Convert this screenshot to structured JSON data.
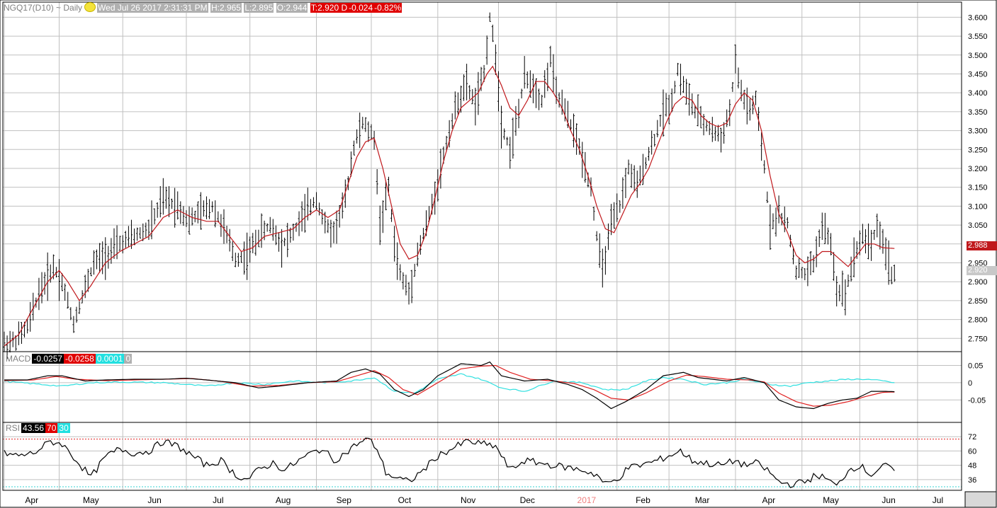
{
  "header": {
    "symbol": "NGQ17(D10) ~ Daily",
    "datetime": "Wed Jul 26 2017 2:31:31 PM",
    "high": "H:2.965",
    "low": "L:2.895",
    "open": "O:2.944",
    "last": "T:2.920 D",
    "change": "-0.024",
    "change_pct": "-0.82%"
  },
  "price_tags": {
    "ma": "2.988",
    "last": "2.920"
  },
  "macd_legend": {
    "label": "MACD",
    "macd": "-0.0257",
    "signal": "-0.0258",
    "hist": "0.0001",
    "zero": "0"
  },
  "rsi_legend": {
    "label": "RSI",
    "value": "43.56",
    "upper": "70",
    "lower": "30"
  },
  "colors": {
    "bars": "#000000",
    "ma": "#c0181c",
    "macd": "#000000",
    "signal": "#e02020",
    "hist": "#30e0e0",
    "rsi": "#000000",
    "grid": "#c0c0c0"
  },
  "chart_data": {
    "type": "line",
    "price_axis": {
      "ticks": [
        "3.600",
        "3.550",
        "3.500",
        "3.450",
        "3.400",
        "3.350",
        "3.300",
        "3.250",
        "3.200",
        "3.150",
        "3.100",
        "3.050",
        "3.000",
        "2.950",
        "2.900",
        "2.850",
        "2.800",
        "2.750"
      ],
      "ylim": [
        2.715,
        3.64
      ]
    },
    "macd_axis": {
      "ticks": [
        "0.05",
        "0",
        "-0.05"
      ],
      "ylim": [
        -0.115,
        0.09
      ]
    },
    "rsi_axis": {
      "ticks": [
        "72",
        "60",
        "48",
        "36"
      ],
      "ylim": [
        27,
        84
      ]
    },
    "month_labels": [
      "Apr",
      "May",
      "Jun",
      "Jul",
      "Aug",
      "Sep",
      "Oct",
      "Nov",
      "Dec",
      "2017",
      "Feb",
      "Mar",
      "Apr",
      "May",
      "Jun",
      "Jul"
    ],
    "anchor_bars": [
      0,
      19,
      41,
      63,
      85,
      108,
      127,
      150,
      171,
      191,
      212,
      230,
      253,
      276,
      296,
      316,
      330
    ],
    "price_ohlc_knots": [
      [
        0,
        2.735
      ],
      [
        4,
        2.745
      ],
      [
        8,
        2.78
      ],
      [
        12,
        2.87
      ],
      [
        17,
        2.94
      ],
      [
        20,
        2.9
      ],
      [
        24,
        2.79
      ],
      [
        27,
        2.86
      ],
      [
        31,
        2.95
      ],
      [
        35,
        2.97
      ],
      [
        40,
        3.0
      ],
      [
        45,
        3.02
      ],
      [
        50,
        3.04
      ],
      [
        55,
        3.12
      ],
      [
        60,
        3.1
      ],
      [
        64,
        3.06
      ],
      [
        67,
        3.08
      ],
      [
        72,
        3.1
      ],
      [
        76,
        3.04
      ],
      [
        80,
        2.96
      ],
      [
        84,
        2.97
      ],
      [
        88,
        3.02
      ],
      [
        92,
        3.05
      ],
      [
        96,
        3.0
      ],
      [
        99,
        3.02
      ],
      [
        104,
        3.08
      ],
      [
        108,
        3.12
      ],
      [
        111,
        3.05
      ],
      [
        114,
        3.03
      ],
      [
        118,
        3.12
      ],
      [
        121,
        3.26
      ],
      [
        124,
        3.32
      ],
      [
        128,
        3.28
      ],
      [
        130,
        3.05
      ],
      [
        133,
        3.15
      ],
      [
        135,
        3.0
      ],
      [
        137,
        2.92
      ],
      [
        140,
        2.87
      ],
      [
        143,
        2.97
      ],
      [
        146,
        3.05
      ],
      [
        148,
        3.1
      ],
      [
        151,
        3.2
      ],
      [
        154,
        3.3
      ],
      [
        157,
        3.38
      ],
      [
        160,
        3.42
      ],
      [
        163,
        3.37
      ],
      [
        166,
        3.45
      ],
      [
        168,
        3.6
      ],
      [
        170,
        3.5
      ],
      [
        172,
        3.32
      ],
      [
        175,
        3.25
      ],
      [
        178,
        3.35
      ],
      [
        180,
        3.44
      ],
      [
        183,
        3.42
      ],
      [
        186,
        3.38
      ],
      [
        189,
        3.49
      ],
      [
        191,
        3.4
      ],
      [
        194,
        3.35
      ],
      [
        197,
        3.3
      ],
      [
        200,
        3.23
      ],
      [
        203,
        3.15
      ],
      [
        205,
        3.02
      ],
      [
        207,
        2.93
      ],
      [
        210,
        3.05
      ],
      [
        213,
        3.1
      ],
      [
        216,
        3.2
      ],
      [
        219,
        3.15
      ],
      [
        222,
        3.22
      ],
      [
        225,
        3.28
      ],
      [
        228,
        3.35
      ],
      [
        231,
        3.38
      ],
      [
        233,
        3.46
      ],
      [
        236,
        3.4
      ],
      [
        239,
        3.35
      ],
      [
        242,
        3.32
      ],
      [
        245,
        3.3
      ],
      [
        248,
        3.28
      ],
      [
        251,
        3.35
      ],
      [
        253,
        3.48
      ],
      [
        255,
        3.4
      ],
      [
        258,
        3.35
      ],
      [
        260,
        3.38
      ],
      [
        263,
        3.2
      ],
      [
        265,
        3.05
      ],
      [
        268,
        3.08
      ],
      [
        271,
        3.05
      ],
      [
        274,
        2.93
      ],
      [
        277,
        2.92
      ],
      [
        280,
        2.95
      ],
      [
        283,
        3.05
      ],
      [
        286,
        3.0
      ],
      [
        288,
        2.88
      ],
      [
        291,
        2.87
      ],
      [
        294,
        2.97
      ],
      [
        297,
        3.02
      ],
      [
        300,
        3.0
      ],
      [
        302,
        3.05
      ],
      [
        305,
        2.98
      ],
      [
        307,
        2.92
      ],
      [
        308,
        2.92
      ]
    ],
    "ma_knots": [
      [
        0,
        2.73
      ],
      [
        5,
        2.76
      ],
      [
        10,
        2.83
      ],
      [
        15,
        2.9
      ],
      [
        19,
        2.93
      ],
      [
        22,
        2.9
      ],
      [
        26,
        2.85
      ],
      [
        30,
        2.89
      ],
      [
        35,
        2.95
      ],
      [
        40,
        2.98
      ],
      [
        45,
        3.0
      ],
      [
        50,
        3.02
      ],
      [
        55,
        3.07
      ],
      [
        60,
        3.09
      ],
      [
        65,
        3.07
      ],
      [
        70,
        3.06
      ],
      [
        74,
        3.06
      ],
      [
        78,
        3.02
      ],
      [
        82,
        2.98
      ],
      [
        86,
        2.99
      ],
      [
        90,
        3.02
      ],
      [
        95,
        3.03
      ],
      [
        100,
        3.04
      ],
      [
        104,
        3.07
      ],
      [
        108,
        3.09
      ],
      [
        112,
        3.07
      ],
      [
        116,
        3.09
      ],
      [
        119,
        3.16
      ],
      [
        122,
        3.23
      ],
      [
        125,
        3.27
      ],
      [
        128,
        3.28
      ],
      [
        131,
        3.2
      ],
      [
        134,
        3.1
      ],
      [
        137,
        3.0
      ],
      [
        140,
        2.96
      ],
      [
        143,
        2.97
      ],
      [
        146,
        3.03
      ],
      [
        149,
        3.12
      ],
      [
        152,
        3.22
      ],
      [
        155,
        3.3
      ],
      [
        158,
        3.36
      ],
      [
        161,
        3.38
      ],
      [
        164,
        3.4
      ],
      [
        167,
        3.45
      ],
      [
        169,
        3.47
      ],
      [
        172,
        3.42
      ],
      [
        175,
        3.36
      ],
      [
        178,
        3.34
      ],
      [
        181,
        3.38
      ],
      [
        184,
        3.43
      ],
      [
        187,
        3.43
      ],
      [
        190,
        3.4
      ],
      [
        193,
        3.36
      ],
      [
        196,
        3.3
      ],
      [
        199,
        3.25
      ],
      [
        202,
        3.18
      ],
      [
        205,
        3.1
      ],
      [
        208,
        3.04
      ],
      [
        211,
        3.03
      ],
      [
        214,
        3.08
      ],
      [
        217,
        3.13
      ],
      [
        220,
        3.16
      ],
      [
        223,
        3.2
      ],
      [
        226,
        3.26
      ],
      [
        229,
        3.32
      ],
      [
        232,
        3.37
      ],
      [
        235,
        3.39
      ],
      [
        238,
        3.38
      ],
      [
        241,
        3.34
      ],
      [
        244,
        3.32
      ],
      [
        247,
        3.31
      ],
      [
        250,
        3.32
      ],
      [
        253,
        3.37
      ],
      [
        256,
        3.4
      ],
      [
        259,
        3.38
      ],
      [
        262,
        3.3
      ],
      [
        265,
        3.18
      ],
      [
        268,
        3.08
      ],
      [
        271,
        3.03
      ],
      [
        274,
        2.97
      ],
      [
        277,
        2.95
      ],
      [
        280,
        2.96
      ],
      [
        283,
        2.98
      ],
      [
        286,
        2.98
      ],
      [
        289,
        2.96
      ],
      [
        292,
        2.94
      ],
      [
        295,
        2.97
      ],
      [
        298,
        3.0
      ],
      [
        301,
        3.0
      ],
      [
        304,
        2.99
      ],
      [
        308,
        2.988
      ]
    ],
    "macd_knots": [
      [
        0,
        0.008
      ],
      [
        8,
        0.008
      ],
      [
        15,
        0.02
      ],
      [
        20,
        0.02
      ],
      [
        28,
        0.005
      ],
      [
        35,
        0.008
      ],
      [
        45,
        0.01
      ],
      [
        55,
        0.01
      ],
      [
        63,
        0.013
      ],
      [
        70,
        0.008
      ],
      [
        80,
        0.0
      ],
      [
        88,
        -0.015
      ],
      [
        95,
        -0.01
      ],
      [
        105,
        0.0
      ],
      [
        115,
        0.005
      ],
      [
        120,
        0.03
      ],
      [
        125,
        0.04
      ],
      [
        130,
        0.025
      ],
      [
        135,
        -0.02
      ],
      [
        140,
        -0.04
      ],
      [
        145,
        -0.02
      ],
      [
        150,
        0.02
      ],
      [
        158,
        0.055
      ],
      [
        165,
        0.05
      ],
      [
        168,
        0.06
      ],
      [
        172,
        0.02
      ],
      [
        180,
        0.005
      ],
      [
        188,
        0.01
      ],
      [
        195,
        -0.005
      ],
      [
        200,
        -0.02
      ],
      [
        205,
        -0.045
      ],
      [
        210,
        -0.075
      ],
      [
        215,
        -0.055
      ],
      [
        222,
        -0.02
      ],
      [
        228,
        0.02
      ],
      [
        235,
        0.03
      ],
      [
        240,
        0.015
      ],
      [
        250,
        0.005
      ],
      [
        256,
        0.015
      ],
      [
        263,
        0.0
      ],
      [
        268,
        -0.05
      ],
      [
        274,
        -0.07
      ],
      [
        280,
        -0.075
      ],
      [
        285,
        -0.06
      ],
      [
        290,
        -0.05
      ],
      [
        295,
        -0.045
      ],
      [
        300,
        -0.025
      ],
      [
        305,
        -0.025
      ],
      [
        308,
        -0.026
      ]
    ],
    "signal_knots": [
      [
        0,
        0.006
      ],
      [
        10,
        0.008
      ],
      [
        18,
        0.018
      ],
      [
        25,
        0.01
      ],
      [
        35,
        0.006
      ],
      [
        45,
        0.008
      ],
      [
        55,
        0.01
      ],
      [
        65,
        0.012
      ],
      [
        75,
        0.004
      ],
      [
        85,
        -0.01
      ],
      [
        95,
        -0.008
      ],
      [
        105,
        0.0
      ],
      [
        115,
        0.003
      ],
      [
        122,
        0.02
      ],
      [
        128,
        0.035
      ],
      [
        133,
        0.015
      ],
      [
        138,
        -0.02
      ],
      [
        143,
        -0.035
      ],
      [
        150,
        0.0
      ],
      [
        158,
        0.04
      ],
      [
        165,
        0.048
      ],
      [
        170,
        0.05
      ],
      [
        175,
        0.03
      ],
      [
        182,
        0.01
      ],
      [
        190,
        0.005
      ],
      [
        197,
        -0.002
      ],
      [
        204,
        -0.02
      ],
      [
        210,
        -0.045
      ],
      [
        216,
        -0.05
      ],
      [
        222,
        -0.03
      ],
      [
        230,
        0.005
      ],
      [
        236,
        0.022
      ],
      [
        242,
        0.018
      ],
      [
        250,
        0.01
      ],
      [
        258,
        0.008
      ],
      [
        263,
        0.002
      ],
      [
        268,
        -0.03
      ],
      [
        274,
        -0.055
      ],
      [
        280,
        -0.068
      ],
      [
        286,
        -0.065
      ],
      [
        292,
        -0.055
      ],
      [
        298,
        -0.04
      ],
      [
        304,
        -0.028
      ],
      [
        308,
        -0.027
      ]
    ],
    "hist_knots": [
      [
        0,
        0.004
      ],
      [
        10,
        -0.003
      ],
      [
        20,
        -0.01
      ],
      [
        30,
        0.0
      ],
      [
        40,
        0.002
      ],
      [
        55,
        0.0
      ],
      [
        70,
        -0.01
      ],
      [
        80,
        0.0
      ],
      [
        90,
        -0.005
      ],
      [
        100,
        0.005
      ],
      [
        110,
        0.0
      ],
      [
        120,
        0.005
      ],
      [
        128,
        0.015
      ],
      [
        135,
        -0.025
      ],
      [
        142,
        -0.03
      ],
      [
        150,
        0.01
      ],
      [
        158,
        0.025
      ],
      [
        165,
        0.01
      ],
      [
        172,
        -0.015
      ],
      [
        180,
        -0.025
      ],
      [
        190,
        0.005
      ],
      [
        200,
        0.0
      ],
      [
        208,
        -0.02
      ],
      [
        215,
        -0.02
      ],
      [
        222,
        0.005
      ],
      [
        228,
        0.015
      ],
      [
        235,
        0.01
      ],
      [
        242,
        -0.005
      ],
      [
        250,
        0.0
      ],
      [
        256,
        0.01
      ],
      [
        265,
        -0.005
      ],
      [
        272,
        -0.01
      ],
      [
        278,
        0.0
      ],
      [
        285,
        0.005
      ],
      [
        292,
        0.01
      ],
      [
        298,
        0.01
      ],
      [
        304,
        0.005
      ],
      [
        308,
        0.0
      ]
    ],
    "rsi_knots": [
      [
        0,
        58
      ],
      [
        5,
        56
      ],
      [
        10,
        58
      ],
      [
        16,
        68
      ],
      [
        20,
        66
      ],
      [
        25,
        52
      ],
      [
        30,
        38
      ],
      [
        35,
        55
      ],
      [
        40,
        62
      ],
      [
        45,
        58
      ],
      [
        50,
        60
      ],
      [
        55,
        68
      ],
      [
        60,
        64
      ],
      [
        65,
        56
      ],
      [
        70,
        48
      ],
      [
        75,
        52
      ],
      [
        80,
        40
      ],
      [
        84,
        36
      ],
      [
        88,
        44
      ],
      [
        93,
        50
      ],
      [
        97,
        44
      ],
      [
        102,
        52
      ],
      [
        106,
        58
      ],
      [
        110,
        62
      ],
      [
        114,
        52
      ],
      [
        118,
        58
      ],
      [
        122,
        66
      ],
      [
        126,
        70
      ],
      [
        129,
        62
      ],
      [
        132,
        42
      ],
      [
        135,
        38
      ],
      [
        140,
        34
      ],
      [
        145,
        44
      ],
      [
        150,
        56
      ],
      [
        155,
        62
      ],
      [
        160,
        68
      ],
      [
        165,
        66
      ],
      [
        170,
        64
      ],
      [
        172,
        56
      ],
      [
        175,
        44
      ],
      [
        180,
        52
      ],
      [
        185,
        50
      ],
      [
        190,
        48
      ],
      [
        195,
        46
      ],
      [
        200,
        44
      ],
      [
        205,
        40
      ],
      [
        208,
        32
      ],
      [
        212,
        36
      ],
      [
        216,
        46
      ],
      [
        220,
        48
      ],
      [
        226,
        52
      ],
      [
        230,
        56
      ],
      [
        234,
        60
      ],
      [
        238,
        52
      ],
      [
        242,
        50
      ],
      [
        248,
        48
      ],
      [
        253,
        52
      ],
      [
        256,
        48
      ],
      [
        260,
        50
      ],
      [
        264,
        44
      ],
      [
        268,
        34
      ],
      [
        272,
        32
      ],
      [
        277,
        34
      ],
      [
        281,
        40
      ],
      [
        285,
        36
      ],
      [
        288,
        30
      ],
      [
        292,
        44
      ],
      [
        296,
        48
      ],
      [
        300,
        40
      ],
      [
        304,
        48
      ],
      [
        308,
        44
      ]
    ],
    "bars_count": 309,
    "n_bars_total": 330
  }
}
